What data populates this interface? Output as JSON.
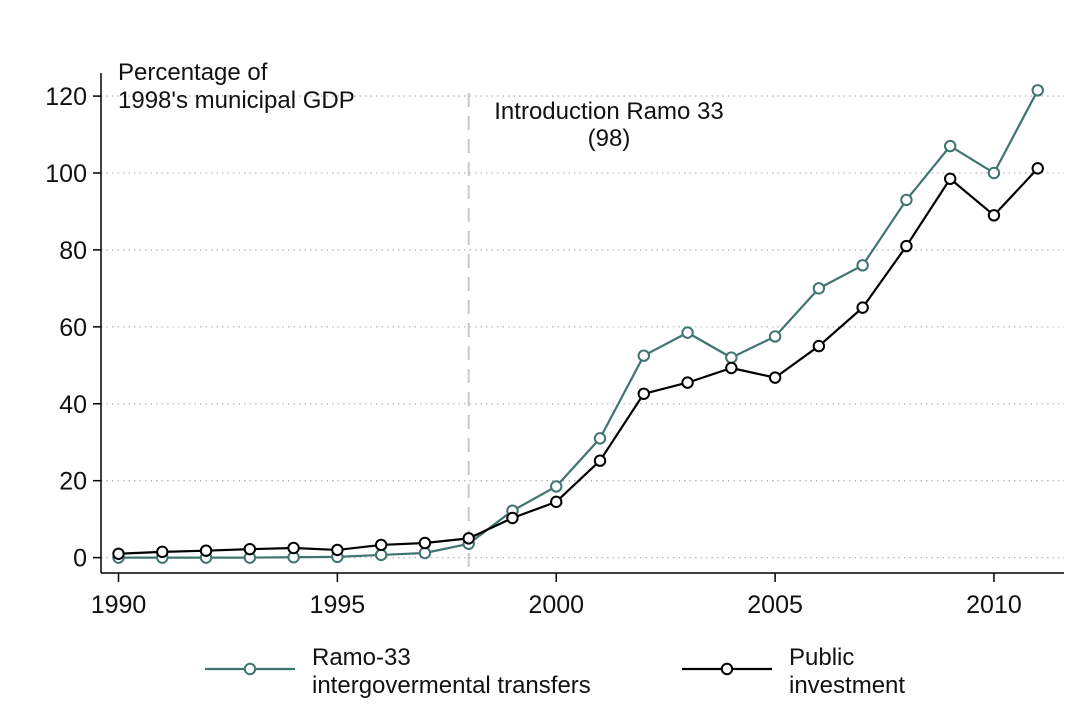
{
  "chart_data": {
    "type": "line",
    "x": [
      1990,
      1991,
      1992,
      1993,
      1994,
      1995,
      1996,
      1997,
      1998,
      1999,
      2000,
      2001,
      2002,
      2003,
      2004,
      2005,
      2006,
      2007,
      2008,
      2009,
      2010,
      2011
    ],
    "series": [
      {
        "name": "Ramo-33 intergovermental transfers",
        "legend_lines": [
          "Ramo-33",
          "intergovermental transfers"
        ],
        "color": "#3f7470",
        "values": [
          0.0,
          0.0,
          0.0,
          0.0,
          0.1,
          0.2,
          0.7,
          1.2,
          3.6,
          12.2,
          18.5,
          31.0,
          52.5,
          58.5,
          52.0,
          57.5,
          70.0,
          76.0,
          93.0,
          107.0,
          100.0,
          121.5
        ]
      },
      {
        "name": "Public investment",
        "legend_lines": [
          "Public",
          "investment"
        ],
        "color": "#000000",
        "values": [
          1.0,
          1.5,
          1.8,
          2.2,
          2.5,
          2.0,
          3.3,
          3.8,
          5.0,
          10.3,
          14.5,
          25.2,
          42.6,
          45.5,
          49.3,
          46.8,
          55.0,
          65.0,
          81.0,
          98.5,
          89.0,
          101.2
        ]
      }
    ],
    "yaxis_title_lines": [
      "Percentage of",
      "1998's municipal GDP"
    ],
    "xlabel": "",
    "xlim": [
      1989.6,
      2011.6
    ],
    "ylim": [
      -4,
      126
    ],
    "xticks": [
      1990,
      1995,
      2000,
      2005,
      2010
    ],
    "yticks": [
      0,
      20,
      40,
      60,
      80,
      100,
      120
    ],
    "grid": "horizontal dotted",
    "legend_position": "bottom",
    "reference_line": {
      "x": 1998,
      "style": "dashed",
      "color": "#c8c8c8",
      "label_lines": [
        "Introduction Ramo 33",
        "(98)"
      ]
    },
    "axis_color": "#000000",
    "grid_color": "#b8b8b8"
  }
}
